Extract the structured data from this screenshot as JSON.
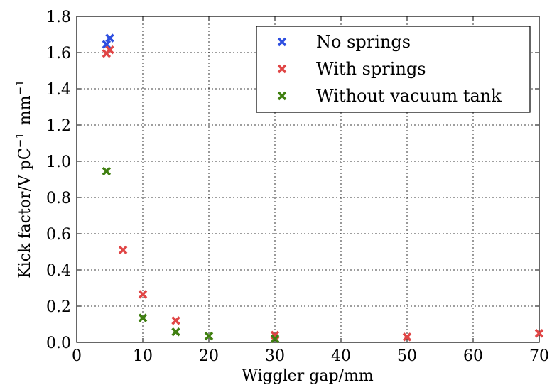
{
  "chart_data": {
    "type": "scatter",
    "xlabel": "Wiggler gap/mm",
    "ylabel_main": "Kick factor/V pC",
    "ylabel_sup1": "−1",
    "ylabel_unit": "mm",
    "ylabel_sup2": "−1",
    "xlim": [
      0,
      70
    ],
    "ylim": [
      0.0,
      1.8
    ],
    "xticks": [
      0,
      10,
      20,
      30,
      40,
      50,
      60,
      70
    ],
    "yticks": [
      0.0,
      0.2,
      0.4,
      0.6,
      0.8,
      1.0,
      1.2,
      1.4,
      1.6,
      1.8
    ],
    "grid": true,
    "legend_position": "top-right",
    "series": [
      {
        "name": "No springs",
        "color": "#2e4fe0",
        "marker": "x",
        "points": [
          [
            4.5,
            1.645
          ],
          [
            5.0,
            1.68
          ]
        ]
      },
      {
        "name": "With springs",
        "color": "#e04646",
        "marker": "x",
        "points": [
          [
            4.5,
            1.595
          ],
          [
            5.0,
            1.615
          ],
          [
            7.0,
            0.51
          ],
          [
            10.0,
            0.265
          ],
          [
            15.0,
            0.12
          ],
          [
            30.0,
            0.04
          ],
          [
            50.0,
            0.03
          ],
          [
            70.0,
            0.05
          ]
        ]
      },
      {
        "name": "Without vacuum tank",
        "color": "#3f7f10",
        "marker": "x",
        "points": [
          [
            4.5,
            0.945
          ],
          [
            10.0,
            0.135
          ],
          [
            15.0,
            0.058
          ],
          [
            20.0,
            0.035
          ],
          [
            30.0,
            0.02
          ]
        ]
      }
    ]
  }
}
